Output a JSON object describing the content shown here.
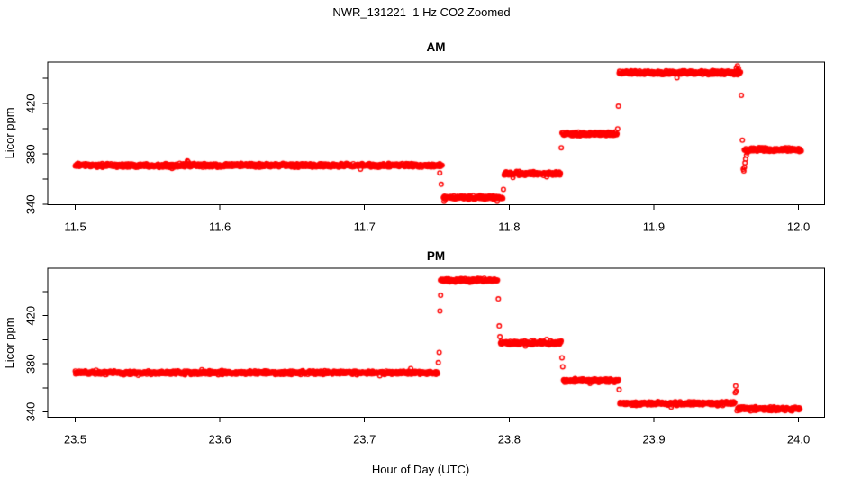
{
  "figure": {
    "title": "NWR_131221  1 Hz CO2 Zoomed",
    "xlabel": "Hour of Day (UTC)",
    "background_color": "#FFFFFF",
    "foreground_color": "#000000"
  },
  "chart_data": [
    {
      "type": "scatter",
      "title": "AM",
      "ylabel": "Licor ppm",
      "marker": "open-circle",
      "point_color": "#FF0000",
      "sample_rate_hz": 1,
      "grid": false,
      "xlim": [
        11.481,
        12.018
      ],
      "ylim": [
        339.8,
        453.0
      ],
      "x_tick_values": [
        11.5,
        11.6,
        11.7,
        11.8,
        11.9,
        12.0
      ],
      "x_tick_labels": [
        "11.5",
        "11.6",
        "11.7",
        "11.8",
        "11.9",
        "12.0"
      ],
      "y_tick_values": [
        340,
        380,
        420
      ],
      "y_tick_labels": [
        "340",
        "380",
        "420"
      ],
      "y_minor_tick_values": [
        360,
        400,
        440
      ],
      "segments": [
        {
          "start": 11.5,
          "end": 11.7535,
          "ppm": 371.0
        },
        {
          "start": 11.7545,
          "end": 11.7955,
          "ppm": 345.5
        },
        {
          "start": 11.7965,
          "end": 11.8355,
          "ppm": 364.5
        },
        {
          "start": 11.8365,
          "end": 11.8745,
          "ppm": 396.0
        },
        {
          "start": 11.876,
          "end": 11.96,
          "ppm": 444.5
        },
        {
          "start": 11.9625,
          "end": 12.002,
          "ppm": 383.5
        }
      ],
      "stray_points": [
        [
          11.752,
          365.0
        ],
        [
          11.753,
          356.0
        ],
        [
          11.755,
          342.5
        ],
        [
          11.796,
          352.0
        ],
        [
          11.836,
          385.0
        ],
        [
          11.875,
          400.0
        ],
        [
          11.8755,
          418.0
        ],
        [
          11.916,
          440.5
        ],
        [
          11.957,
          448.5
        ],
        [
          11.9578,
          450.0
        ],
        [
          11.9585,
          448.0
        ],
        [
          11.9605,
          426.5
        ],
        [
          11.9612,
          391.0
        ],
        [
          11.9618,
          368.0
        ],
        [
          11.9622,
          366.5
        ],
        [
          11.9626,
          369.5
        ],
        [
          11.963,
          373.0
        ],
        [
          11.9634,
          376.0
        ],
        [
          11.964,
          379.0
        ],
        [
          11.9646,
          381.0
        ]
      ]
    },
    {
      "type": "scatter",
      "title": "PM",
      "ylabel": "Licor ppm",
      "marker": "open-circle",
      "point_color": "#FF0000",
      "sample_rate_hz": 1,
      "grid": false,
      "xlim": [
        23.481,
        24.018
      ],
      "ylim": [
        335.5,
        459.5
      ],
      "x_tick_values": [
        23.5,
        23.6,
        23.7,
        23.8,
        23.9,
        24.0
      ],
      "x_tick_labels": [
        "23.5",
        "23.6",
        "23.7",
        "23.8",
        "23.9",
        "24.0"
      ],
      "y_tick_values": [
        340,
        380,
        420
      ],
      "y_tick_labels": [
        "340",
        "380",
        "420"
      ],
      "y_minor_tick_values": [
        360,
        400,
        440
      ],
      "segments": [
        {
          "start": 23.5,
          "end": 23.7505,
          "ppm": 372.5
        },
        {
          "start": 23.7525,
          "end": 23.792,
          "ppm": 449.5
        },
        {
          "start": 23.794,
          "end": 23.836,
          "ppm": 397.5
        },
        {
          "start": 23.8375,
          "end": 23.8755,
          "ppm": 366.0
        },
        {
          "start": 23.8765,
          "end": 23.956,
          "ppm": 347.0
        },
        {
          "start": 23.958,
          "end": 24.001,
          "ppm": 342.5
        }
      ],
      "stray_points": [
        [
          23.751,
          381.0
        ],
        [
          23.7516,
          389.5
        ],
        [
          23.7521,
          424.0
        ],
        [
          23.7526,
          437.0
        ],
        [
          23.7925,
          434.0
        ],
        [
          23.7931,
          411.5
        ],
        [
          23.7936,
          402.5
        ],
        [
          23.8365,
          385.0
        ],
        [
          23.837,
          377.5
        ],
        [
          23.876,
          358.5
        ],
        [
          23.912,
          344.0
        ],
        [
          23.9563,
          356.0
        ],
        [
          23.9566,
          361.5
        ],
        [
          23.957,
          357.0
        ],
        [
          23.9575,
          341.0
        ]
      ]
    }
  ]
}
